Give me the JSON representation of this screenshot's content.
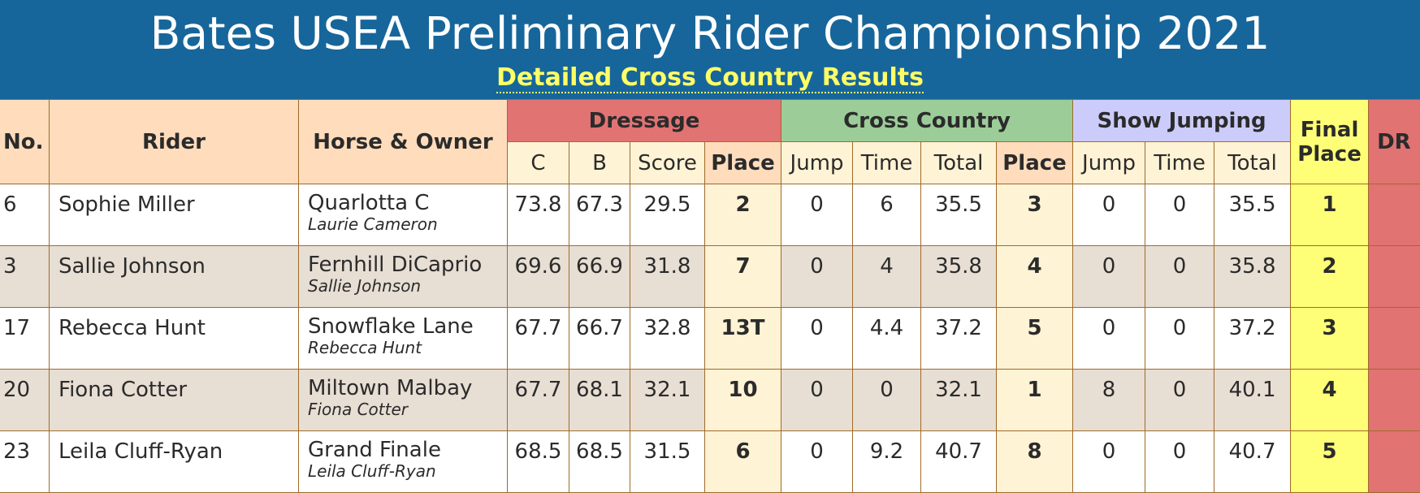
{
  "header": {
    "title": "Bates USEA Preliminary Rider Championship 2021",
    "subtitle": "Detailed Cross Country Results"
  },
  "table": {
    "groups": {
      "dressage": "Dressage",
      "cross_country": "Cross Country",
      "show_jumping": "Show Jumping"
    },
    "columns": {
      "no": "No.",
      "rider": "Rider",
      "horse_owner": "Horse & Owner",
      "dr_c": "C",
      "dr_b": "B",
      "dr_score": "Score",
      "dr_place": "Place",
      "xc_jump": "Jump",
      "xc_time": "Time",
      "xc_total": "Total",
      "xc_place": "Place",
      "sj_jump": "Jump",
      "sj_time": "Time",
      "sj_total": "Total",
      "final_place_line1": "Final",
      "final_place_line2": "Place",
      "dr": "DR"
    },
    "rows": [
      {
        "no": "6",
        "rider": "Sophie Miller",
        "horse": "Quarlotta C",
        "owner": "Laurie Cameron",
        "c": "73.8",
        "b": "67.3",
        "score": "29.5",
        "dr_place": "2",
        "xc_jump": "0",
        "xc_time": "6",
        "xc_total": "35.5",
        "xc_place": "3",
        "sj_jump": "0",
        "sj_time": "0",
        "sj_total": "35.5",
        "final": "1"
      },
      {
        "no": "3",
        "rider": "Sallie Johnson",
        "horse": "Fernhill DiCaprio",
        "owner": "Sallie Johnson",
        "c": "69.6",
        "b": "66.9",
        "score": "31.8",
        "dr_place": "7",
        "xc_jump": "0",
        "xc_time": "4",
        "xc_total": "35.8",
        "xc_place": "4",
        "sj_jump": "0",
        "sj_time": "0",
        "sj_total": "35.8",
        "final": "2"
      },
      {
        "no": "17",
        "rider": "Rebecca Hunt",
        "horse": "Snowflake Lane",
        "owner": "Rebecca Hunt",
        "c": "67.7",
        "b": "66.7",
        "score": "32.8",
        "dr_place": "13T",
        "xc_jump": "0",
        "xc_time": "4.4",
        "xc_total": "37.2",
        "xc_place": "5",
        "sj_jump": "0",
        "sj_time": "0",
        "sj_total": "37.2",
        "final": "3"
      },
      {
        "no": "20",
        "rider": "Fiona Cotter",
        "horse": "Miltown Malbay",
        "owner": "Fiona Cotter",
        "c": "67.7",
        "b": "68.1",
        "score": "32.1",
        "dr_place": "10",
        "xc_jump": "0",
        "xc_time": "0",
        "xc_total": "32.1",
        "xc_place": "1",
        "sj_jump": "8",
        "sj_time": "0",
        "sj_total": "40.1",
        "final": "4"
      },
      {
        "no": "23",
        "rider": "Leila Cluff-Ryan",
        "horse": "Grand Finale",
        "owner": "Leila Cluff-Ryan",
        "c": "68.5",
        "b": "68.5",
        "score": "31.5",
        "dr_place": "6",
        "xc_jump": "0",
        "xc_time": "9.2",
        "xc_total": "40.7",
        "xc_place": "8",
        "sj_jump": "0",
        "sj_time": "0",
        "sj_total": "40.7",
        "final": "5"
      }
    ]
  },
  "colors": {
    "banner": "#17669b",
    "subtitle": "#ffff66",
    "peach_header": "#ffdcbc",
    "cream": "#fff3d5",
    "final_yellow": "#ffff77",
    "dressage_red": "#e27373",
    "cross_country_green": "#9ccd98",
    "show_jumping_lavender": "#ccccfb",
    "alt_row": "#e7ded4"
  }
}
